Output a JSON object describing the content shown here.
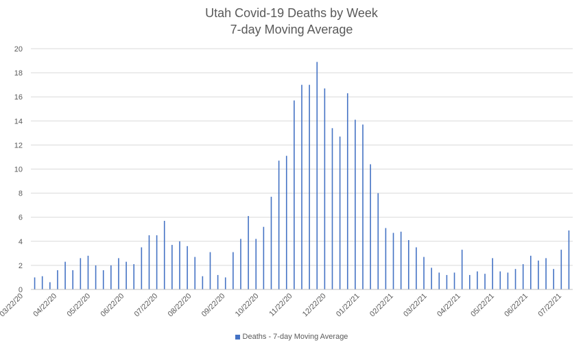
{
  "chart_data": {
    "type": "bar",
    "title": "Utah Covid-19 Deaths by Week",
    "subtitle": "7-day Moving Average",
    "xlabel": "",
    "ylabel": "",
    "ylim": [
      0,
      20
    ],
    "yticks": [
      "0",
      "2",
      "4",
      "6",
      "8",
      "10",
      "12",
      "14",
      "16",
      "18",
      "20"
    ],
    "grid": "horizontal",
    "legend_position": "bottom",
    "bar_color": "#4472c4",
    "xtick_labels": [
      "03/22/20",
      "04/22/20",
      "05/22/20",
      "06/22/20",
      "07/22/20",
      "08/22/20",
      "09/22/20",
      "10/22/20",
      "11/22/20",
      "12/22/20",
      "01/22/21",
      "02/22/21",
      "03/22/21",
      "04/22/21",
      "05/22/21",
      "06/22/21",
      "07/22/21"
    ],
    "series": [
      {
        "name": "Deaths - 7-day  Moving Average",
        "values": [
          1.0,
          1.1,
          0.6,
          1.6,
          2.3,
          1.6,
          2.6,
          2.8,
          2.0,
          1.6,
          2.0,
          2.6,
          2.3,
          2.1,
          3.5,
          4.5,
          4.5,
          5.7,
          3.7,
          4.0,
          3.6,
          2.7,
          1.1,
          3.1,
          1.2,
          1.0,
          3.1,
          4.2,
          6.1,
          4.2,
          5.2,
          7.7,
          10.7,
          11.1,
          15.7,
          17.0,
          17.0,
          18.9,
          16.7,
          13.4,
          12.7,
          16.3,
          14.1,
          13.7,
          10.4,
          8.0,
          5.1,
          4.7,
          4.8,
          4.1,
          3.5,
          2.7,
          1.8,
          1.4,
          1.2,
          1.4,
          3.3,
          1.2,
          1.5,
          1.3,
          2.6,
          1.5,
          1.4,
          1.7,
          2.1,
          2.8,
          2.4,
          2.6,
          1.7,
          3.3,
          4.9
        ]
      }
    ]
  }
}
